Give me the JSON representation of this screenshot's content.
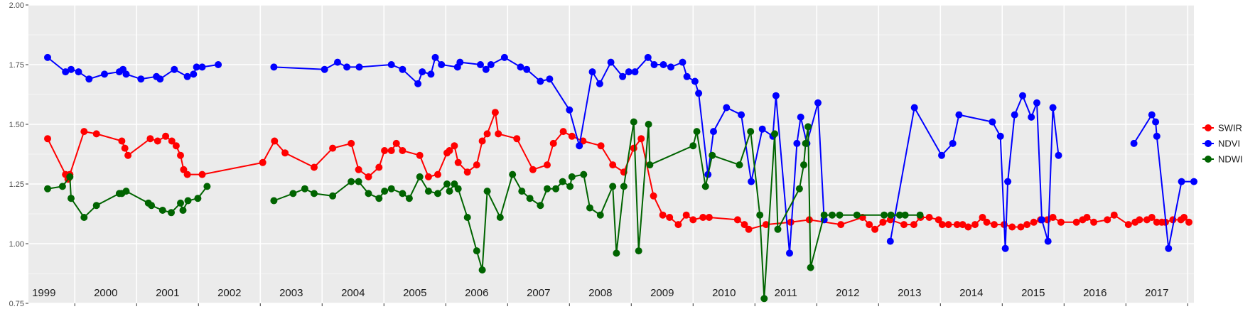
{
  "chart_data": {
    "type": "line",
    "title": "",
    "xlabel": "",
    "ylabel": "",
    "xlim": [
      1998.75,
      2017.6
    ],
    "ylim": [
      0.75,
      2.0
    ],
    "yticks": [
      "0.75",
      "1.00",
      "1.25",
      "1.50",
      "1.75",
      "2.00"
    ],
    "year_labels": [
      "1999",
      "2000",
      "2001",
      "2002",
      "2003",
      "2004",
      "2005",
      "2006",
      "2007",
      "2008",
      "2009",
      "2010",
      "2011",
      "2012",
      "2013",
      "2014",
      "2015",
      "2016",
      "2017"
    ],
    "grid": true,
    "legend_position": "right",
    "series": [
      {
        "name": "SWIR",
        "color": "#ff0000",
        "x": [
          1999.06,
          1999.35,
          1999.39,
          1999.42,
          1999.65,
          1999.85,
          2000.26,
          2000.31,
          2000.36,
          2000.72,
          2000.84,
          2000.97,
          2001.07,
          2001.14,
          2001.21,
          2001.26,
          2001.32,
          2001.56,
          2002.54,
          2002.73,
          2002.9,
          2003.37,
          2003.67,
          2003.97,
          2004.09,
          2004.25,
          2004.42,
          2004.51,
          2004.62,
          2004.7,
          2004.8,
          2005.08,
          2005.22,
          2005.37,
          2005.52,
          2005.56,
          2005.64,
          2005.7,
          2005.85,
          2006.0,
          2006.09,
          2006.17,
          2006.3,
          2006.35,
          2006.65,
          2006.91,
          2007.14,
          2007.24,
          2007.4,
          2007.54,
          2007.72,
          2008.01,
          2008.2,
          2008.38,
          2008.54,
          2008.66,
          2008.86,
          2009.01,
          2009.12,
          2009.26,
          2009.39,
          2009.5,
          2009.66,
          2009.76,
          2010.22,
          2010.33,
          2010.4,
          2010.68,
          2011.08,
          2011.38,
          2011.89,
          2012.24,
          2012.35,
          2012.44,
          2012.57,
          2012.69,
          2012.91,
          2013.07,
          2013.18,
          2013.32,
          2013.47,
          2013.53,
          2013.63,
          2013.77,
          2013.86,
          2013.95,
          2014.06,
          2014.18,
          2014.25,
          2014.37,
          2014.53,
          2014.66,
          2014.8,
          2014.9,
          2015.01,
          2015.12,
          2015.23,
          2015.32,
          2015.45,
          2015.7,
          2015.8,
          2015.87,
          2015.98,
          2016.2,
          2016.31,
          2016.54,
          2016.65,
          2016.72,
          2016.84,
          2016.92,
          2017.0,
          2017.08,
          2017.14,
          2017.26,
          2017.39,
          2017.44,
          2017.52
        ],
        "values": [
          1.44,
          1.29,
          1.27,
          1.29,
          1.47,
          1.46,
          1.43,
          1.4,
          1.37,
          1.44,
          1.43,
          1.45,
          1.43,
          1.41,
          1.37,
          1.31,
          1.29,
          1.29,
          1.34,
          1.43,
          1.38,
          1.32,
          1.4,
          1.42,
          1.31,
          1.28,
          1.32,
          1.39,
          1.39,
          1.42,
          1.39,
          1.37,
          1.28,
          1.29,
          1.38,
          1.39,
          1.41,
          1.34,
          1.3,
          1.33,
          1.43,
          1.46,
          1.55,
          1.46,
          1.44,
          1.31,
          1.33,
          1.42,
          1.47,
          1.45,
          1.43,
          1.41,
          1.33,
          1.3,
          1.4,
          1.44,
          1.2,
          1.12,
          1.11,
          1.08,
          1.12,
          1.1,
          1.11,
          1.11,
          1.1,
          1.08,
          1.06,
          1.08,
          1.09,
          1.1,
          1.08,
          1.11,
          1.08,
          1.06,
          1.09,
          1.1,
          1.08,
          1.08,
          1.11,
          1.11,
          1.1,
          1.08,
          1.08,
          1.08,
          1.08,
          1.07,
          1.08,
          1.11,
          1.09,
          1.08,
          1.08,
          1.07,
          1.07,
          1.08,
          1.09,
          1.1,
          1.1,
          1.11,
          1.09,
          1.09,
          1.1,
          1.11,
          1.09,
          1.1,
          1.12,
          1.08,
          1.09,
          1.1,
          1.1,
          1.11,
          1.09,
          1.09,
          1.09,
          1.1,
          1.1,
          1.11,
          1.09
        ]
      },
      {
        "name": "NDVI",
        "color": "#0000ff",
        "x": [
          1999.06,
          1999.35,
          1999.44,
          1999.56,
          1999.73,
          1999.98,
          2000.22,
          2000.28,
          2000.33,
          2000.57,
          2000.82,
          2000.88,
          2001.11,
          2001.32,
          2001.42,
          2001.47,
          2001.56,
          2001.82,
          2002.72,
          2003.54,
          2003.75,
          2003.9,
          2004.1,
          2004.62,
          2004.8,
          2005.05,
          2005.12,
          2005.26,
          2005.33,
          2005.43,
          2005.69,
          2005.73,
          2006.06,
          2006.15,
          2006.23,
          2006.45,
          2006.71,
          2006.81,
          2007.03,
          2007.18,
          2007.5,
          2007.66,
          2007.87,
          2007.99,
          2008.17,
          2008.36,
          2008.46,
          2008.56,
          2008.77,
          2008.87,
          2009.02,
          2009.14,
          2009.33,
          2009.4,
          2009.53,
          2009.59,
          2009.74,
          2009.83,
          2010.04,
          2010.28,
          2010.44,
          2010.62,
          2010.79,
          2010.84,
          2011.06,
          2011.18,
          2011.24,
          2011.34,
          2011.52,
          2011.62,
          2012.69,
          2013.08,
          2013.52,
          2013.7,
          2013.8,
          2014.34,
          2014.47,
          2014.55,
          2014.59,
          2014.7,
          2014.83,
          2014.97,
          2015.06,
          2015.14,
          2015.24,
          2015.32,
          2015.41,
          2016.63,
          2016.92,
          2016.98,
          2017.0,
          2017.19,
          2017.4,
          2017.6
        ],
        "values": [
          1.78,
          1.72,
          1.73,
          1.72,
          1.69,
          1.71,
          1.72,
          1.73,
          1.71,
          1.69,
          1.7,
          1.69,
          1.73,
          1.7,
          1.71,
          1.74,
          1.74,
          1.75,
          1.74,
          1.73,
          1.76,
          1.74,
          1.74,
          1.75,
          1.73,
          1.67,
          1.72,
          1.71,
          1.78,
          1.75,
          1.74,
          1.76,
          1.75,
          1.73,
          1.75,
          1.78,
          1.74,
          1.73,
          1.68,
          1.69,
          1.56,
          1.41,
          1.72,
          1.67,
          1.76,
          1.7,
          1.72,
          1.72,
          1.78,
          1.75,
          1.75,
          1.74,
          1.76,
          1.7,
          1.68,
          1.63,
          1.29,
          1.47,
          1.57,
          1.54,
          1.26,
          1.48,
          1.45,
          1.62,
          0.96,
          1.42,
          1.53,
          1.42,
          1.59,
          1.1,
          1.01,
          1.57,
          1.37,
          1.42,
          1.54,
          1.51,
          1.45,
          0.98,
          1.26,
          1.54,
          1.62,
          1.53,
          1.59,
          1.1,
          1.01,
          1.57,
          1.37,
          1.42,
          1.54,
          1.51,
          1.45,
          0.98,
          1.26,
          1.26
        ]
      },
      {
        "name": "NDWI",
        "color": "#006400",
        "x": [
          1999.06,
          1999.3,
          1999.42,
          1999.44,
          1999.65,
          1999.85,
          2000.22,
          2000.26,
          2000.33,
          2000.69,
          2000.74,
          2000.92,
          2001.06,
          2001.21,
          2001.25,
          2001.33,
          2001.49,
          2001.64,
          2002.72,
          2003.03,
          2003.22,
          2003.37,
          2003.67,
          2003.97,
          2004.09,
          2004.25,
          2004.42,
          2004.51,
          2004.62,
          2004.8,
          2004.91,
          2005.08,
          2005.22,
          2005.37,
          2005.52,
          2005.56,
          2005.64,
          2005.7,
          2005.85,
          2006.0,
          2006.09,
          2006.17,
          2006.38,
          2006.58,
          2006.73,
          2006.86,
          2007.03,
          2007.14,
          2007.28,
          2007.39,
          2007.51,
          2007.54,
          2007.73,
          2007.83,
          2008.0,
          2008.2,
          2008.26,
          2008.38,
          2008.54,
          2008.62,
          2008.78,
          2008.8,
          2009.5,
          2009.56,
          2009.7,
          2009.81,
          2010.25,
          2010.43,
          2010.58,
          2010.65,
          2010.82,
          2010.87,
          2011.22,
          2011.29,
          2011.32,
          2011.36,
          2011.4,
          2011.62,
          2011.75,
          2011.87,
          2012.15,
          2012.59,
          2012.7,
          2012.84,
          2012.93,
          2013.17
        ],
        "values": [
          1.23,
          1.24,
          1.28,
          1.19,
          1.11,
          1.16,
          1.21,
          1.21,
          1.22,
          1.17,
          1.16,
          1.14,
          1.13,
          1.17,
          1.14,
          1.18,
          1.19,
          1.24,
          1.18,
          1.21,
          1.23,
          1.21,
          1.2,
          1.26,
          1.26,
          1.21,
          1.19,
          1.22,
          1.23,
          1.21,
          1.19,
          1.28,
          1.22,
          1.21,
          1.25,
          1.22,
          1.25,
          1.23,
          1.11,
          0.97,
          0.89,
          1.22,
          1.11,
          1.29,
          1.22,
          1.19,
          1.16,
          1.23,
          1.23,
          1.26,
          1.24,
          1.28,
          1.29,
          1.15,
          1.12,
          1.24,
          0.96,
          1.24,
          1.51,
          0.97,
          1.5,
          1.33,
          1.41,
          1.47,
          1.24,
          1.37,
          1.33,
          1.47,
          1.12,
          0.77,
          1.46,
          1.06,
          1.23,
          1.33,
          1.42,
          1.49,
          0.9,
          1.12,
          1.12,
          1.12,
          1.12,
          1.12,
          1.12,
          1.12,
          1.12,
          1.12
        ]
      }
    ]
  }
}
